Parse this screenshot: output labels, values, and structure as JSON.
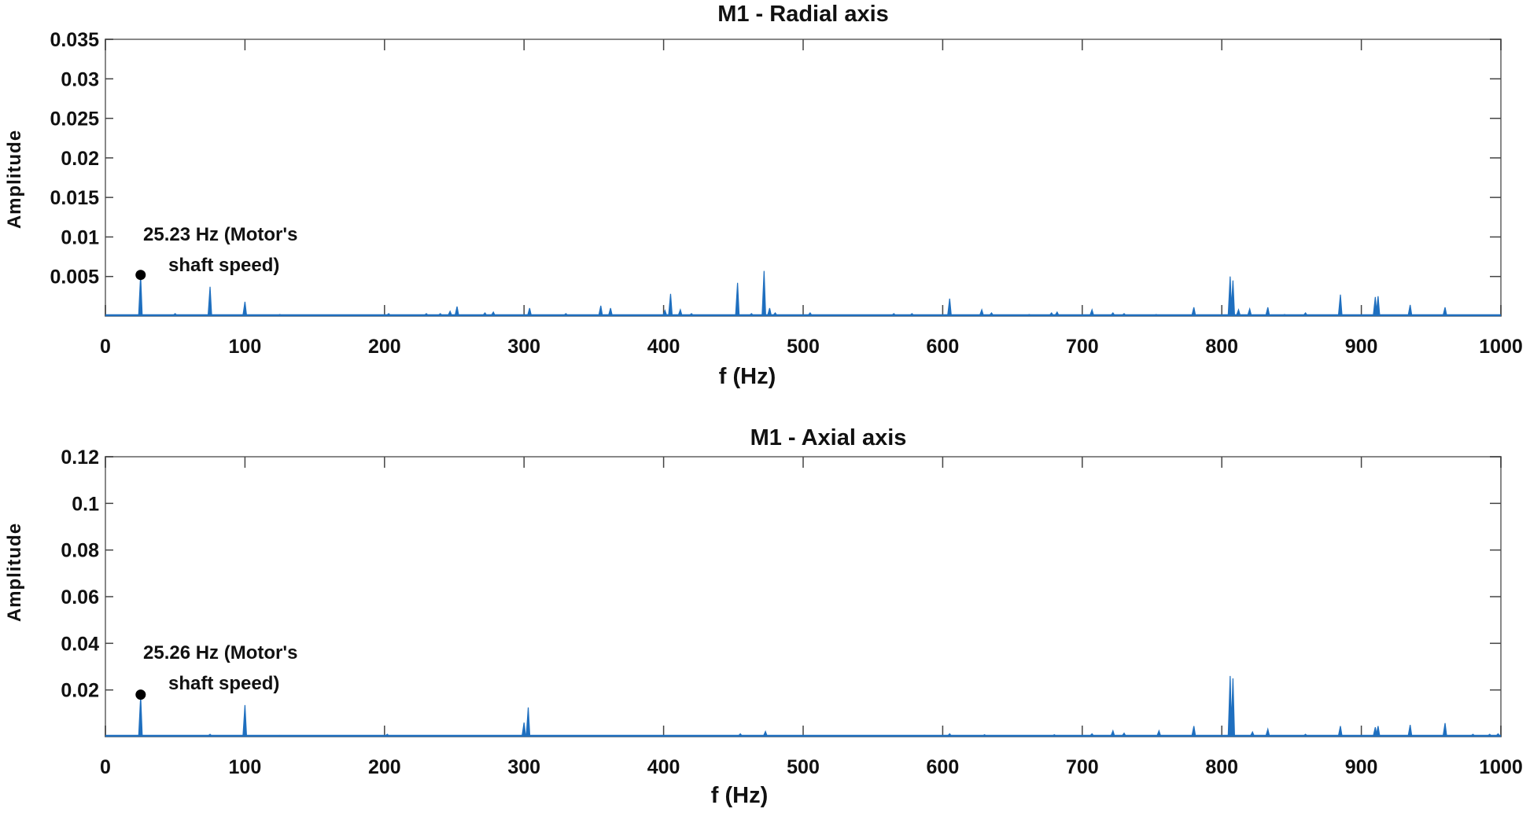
{
  "chart_data": [
    {
      "type": "line",
      "title": "M1 - Radial axis",
      "xlabel": "f (Hz)",
      "ylabel": "Amplitude",
      "xlim": [
        0,
        1000
      ],
      "ylim": [
        0,
        0.035
      ],
      "xticks": [
        "0",
        "100",
        "200",
        "300",
        "400",
        "500",
        "600",
        "700",
        "800",
        "900",
        "1000"
      ],
      "yticks": [
        "0.005",
        "0.01",
        "0.015",
        "0.02",
        "0.025",
        "0.03",
        "0.035"
      ],
      "grid": false,
      "color": "#1f6fbf",
      "annotation": {
        "x": 25.23,
        "y": 0.0052,
        "line1": "25.23 Hz (Motor's",
        "line2": "shaft speed)"
      },
      "peaks": [
        [
          25.23,
          0.0052
        ],
        [
          50,
          0.0003
        ],
        [
          75,
          0.0037
        ],
        [
          100,
          0.0018
        ],
        [
          125,
          0.0002
        ],
        [
          203,
          0.0003
        ],
        [
          230,
          0.0003
        ],
        [
          240,
          0.0003
        ],
        [
          247,
          0.0006
        ],
        [
          252,
          0.0012
        ],
        [
          272,
          0.0004
        ],
        [
          278,
          0.0005
        ],
        [
          304,
          0.001
        ],
        [
          330,
          0.0003
        ],
        [
          355,
          0.0013
        ],
        [
          362,
          0.001
        ],
        [
          401,
          0.0007
        ],
        [
          405,
          0.0028
        ],
        [
          412,
          0.0008
        ],
        [
          420,
          0.0003
        ],
        [
          453,
          0.0042
        ],
        [
          463,
          0.0003
        ],
        [
          472,
          0.0057
        ],
        [
          476,
          0.001
        ],
        [
          480,
          0.0004
        ],
        [
          505,
          0.0004
        ],
        [
          565,
          0.0003
        ],
        [
          578,
          0.0003
        ],
        [
          605,
          0.0022
        ],
        [
          628,
          0.0008
        ],
        [
          635,
          0.0004
        ],
        [
          662,
          0.0002
        ],
        [
          678,
          0.0004
        ],
        [
          682,
          0.0005
        ],
        [
          707,
          0.0008
        ],
        [
          722,
          0.0004
        ],
        [
          730,
          0.0003
        ],
        [
          753,
          0.0002
        ],
        [
          780,
          0.0011
        ],
        [
          806,
          0.005
        ],
        [
          808,
          0.0045
        ],
        [
          812,
          0.0008
        ],
        [
          820,
          0.0009
        ],
        [
          833,
          0.0011
        ],
        [
          845,
          0.0002
        ],
        [
          860,
          0.0004
        ],
        [
          885,
          0.0027
        ],
        [
          910,
          0.0024
        ],
        [
          912,
          0.0025
        ],
        [
          935,
          0.0014
        ],
        [
          960,
          0.0011
        ]
      ]
    },
    {
      "type": "line",
      "title": "M1 - Axial axis",
      "xlabel": "f (Hz)",
      "ylabel": "Amplitude",
      "xlim": [
        0,
        1000
      ],
      "ylim": [
        0,
        0.12
      ],
      "xticks": [
        "0",
        "100",
        "200",
        "300",
        "400",
        "500",
        "600",
        "700",
        "800",
        "900",
        "1000"
      ],
      "yticks": [
        "0.02",
        "0.04",
        "0.06",
        "0.08",
        "0.1",
        "0.12"
      ],
      "grid": false,
      "color": "#1f6fbf",
      "annotation": {
        "x": 25.26,
        "y": 0.018,
        "line1": "25.26 Hz (Motor's",
        "line2": "shaft speed)"
      },
      "peaks": [
        [
          25.26,
          0.0175
        ],
        [
          75,
          0.001
        ],
        [
          100,
          0.0135
        ],
        [
          125,
          0.0005
        ],
        [
          202,
          0.001
        ],
        [
          300,
          0.006
        ],
        [
          303,
          0.0125
        ],
        [
          455,
          0.0012
        ],
        [
          473,
          0.0022
        ],
        [
          605,
          0.0012
        ],
        [
          630,
          0.0008
        ],
        [
          680,
          0.0008
        ],
        [
          707,
          0.0012
        ],
        [
          722,
          0.0025
        ],
        [
          730,
          0.0015
        ],
        [
          755,
          0.0025
        ],
        [
          780,
          0.0045
        ],
        [
          806,
          0.026
        ],
        [
          808,
          0.025
        ],
        [
          822,
          0.002
        ],
        [
          833,
          0.0032
        ],
        [
          860,
          0.001
        ],
        [
          885,
          0.0045
        ],
        [
          910,
          0.004
        ],
        [
          912,
          0.0045
        ],
        [
          935,
          0.005
        ],
        [
          960,
          0.0058
        ],
        [
          980,
          0.001
        ],
        [
          992,
          0.001
        ],
        [
          998,
          0.0012
        ]
      ]
    }
  ]
}
